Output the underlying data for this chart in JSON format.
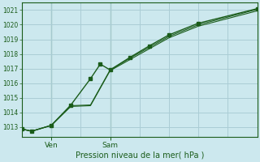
{
  "xlabel": "Pression niveau de la mer( hPa )",
  "ylim": [
    1012.3,
    1021.5
  ],
  "xlim": [
    0,
    12
  ],
  "yticks": [
    1013,
    1014,
    1015,
    1016,
    1017,
    1018,
    1019,
    1020,
    1021
  ],
  "bg_color": "#cce8ee",
  "grid_color": "#aacdd5",
  "line_color": "#1a5c1a",
  "ven_x": 1.5,
  "sam_x": 4.5,
  "series1_x": [
    0,
    0.5,
    1.5,
    2.5,
    3.5,
    4.0,
    4.5,
    5.5,
    6.5,
    7.5,
    9.0,
    12.0
  ],
  "series1_y": [
    1012.85,
    1012.7,
    1013.1,
    1014.5,
    1016.3,
    1017.3,
    1016.9,
    1017.75,
    1018.55,
    1019.3,
    1020.1,
    1021.1
  ],
  "series2_x": [
    0,
    0.5,
    1.5,
    2.5,
    3.5,
    4.5,
    5.5,
    6.5,
    7.5,
    9.0,
    12.0
  ],
  "series2_y": [
    1012.85,
    1012.7,
    1013.1,
    1014.45,
    1014.5,
    1016.9,
    1017.7,
    1018.45,
    1019.2,
    1020.0,
    1021.05
  ],
  "series3_x": [
    0,
    0.5,
    1.5,
    2.5,
    3.5,
    4.5,
    5.5,
    6.5,
    7.5,
    9.0,
    12.0
  ],
  "series3_y": [
    1012.85,
    1012.7,
    1013.1,
    1014.4,
    1014.45,
    1016.85,
    1017.6,
    1018.35,
    1019.1,
    1019.9,
    1020.95
  ],
  "markers1_x": [
    0,
    0.5,
    1.5,
    2.5,
    3.5,
    4.0,
    4.5,
    5.5,
    6.5,
    7.5,
    9.0,
    12.0
  ],
  "markers1_y": [
    1012.85,
    1012.7,
    1013.1,
    1014.5,
    1016.3,
    1017.3,
    1016.9,
    1017.75,
    1018.55,
    1019.3,
    1020.1,
    1021.1
  ],
  "xtick_labels": [
    "Ven",
    "Sam"
  ],
  "xtick_pos": [
    1.5,
    4.5
  ]
}
